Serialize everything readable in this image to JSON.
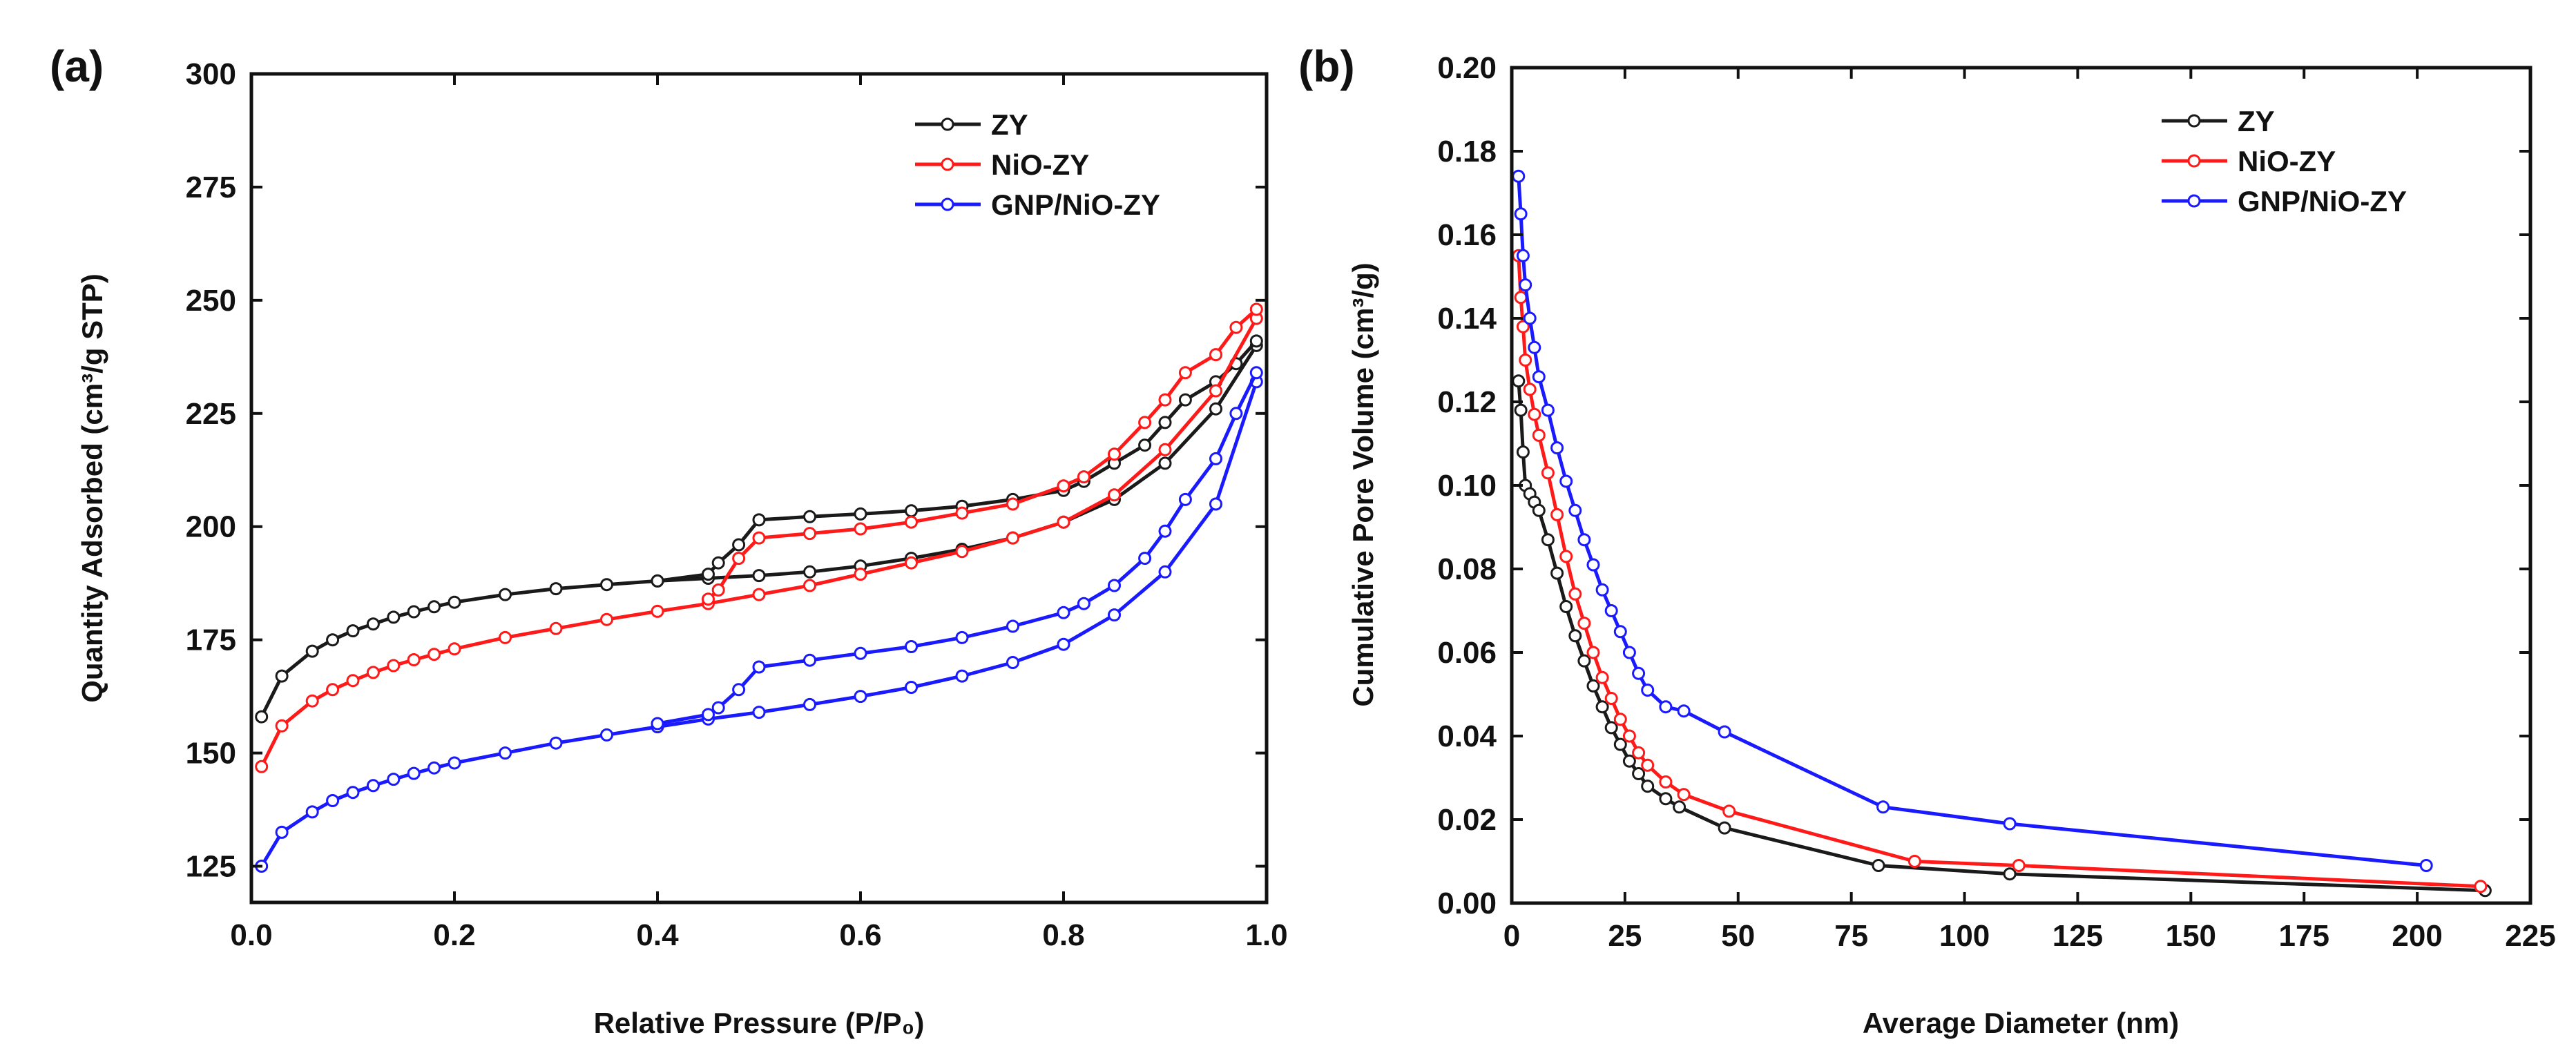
{
  "chart_data": [
    {
      "type": "line",
      "panel_label": "(a)",
      "title": "",
      "xlabel": "Relative Pressure (P/P₀)",
      "ylabel": "Quantity Adsorbed (cm³/g STP)",
      "xlim": [
        0.0,
        1.0
      ],
      "ylim": [
        117,
        300
      ],
      "xticks": [
        0.0,
        0.2,
        0.4,
        0.6,
        0.8,
        1.0
      ],
      "xtick_labels": [
        "0.0",
        "0.2",
        "0.4",
        "0.6",
        "0.8",
        "1.0"
      ],
      "yticks": [
        125,
        150,
        175,
        200,
        225,
        250,
        275,
        300
      ],
      "ytick_labels": [
        "125",
        "150",
        "175",
        "200",
        "225",
        "250",
        "275",
        "300"
      ],
      "grid": false,
      "legend_position": "top-right",
      "series": [
        {
          "name": "ZY",
          "color": "#1a1a1a",
          "adsorption": [
            [
              0.01,
              158
            ],
            [
              0.03,
              167
            ],
            [
              0.06,
              172.5
            ],
            [
              0.08,
              175
            ],
            [
              0.1,
              177
            ],
            [
              0.12,
              178.5
            ],
            [
              0.14,
              180
            ],
            [
              0.16,
              181.2
            ],
            [
              0.18,
              182.3
            ],
            [
              0.2,
              183.3
            ],
            [
              0.25,
              185
            ],
            [
              0.3,
              186.3
            ],
            [
              0.35,
              187.2
            ],
            [
              0.4,
              188
            ],
            [
              0.45,
              188.6
            ],
            [
              0.5,
              189.2
            ],
            [
              0.55,
              190
            ],
            [
              0.6,
              191.3
            ],
            [
              0.65,
              193
            ],
            [
              0.7,
              195
            ],
            [
              0.75,
              197.5
            ],
            [
              0.8,
              201
            ],
            [
              0.85,
              206
            ],
            [
              0.9,
              214
            ],
            [
              0.95,
              226
            ],
            [
              0.99,
              240
            ]
          ],
          "desorption": [
            [
              0.99,
              241
            ],
            [
              0.97,
              236
            ],
            [
              0.95,
              232
            ],
            [
              0.92,
              228
            ],
            [
              0.9,
              223
            ],
            [
              0.88,
              218
            ],
            [
              0.85,
              214
            ],
            [
              0.82,
              210
            ],
            [
              0.8,
              208
            ],
            [
              0.75,
              206
            ],
            [
              0.7,
              204.5
            ],
            [
              0.65,
              203.5
            ],
            [
              0.6,
              202.8
            ],
            [
              0.55,
              202.2
            ],
            [
              0.5,
              201.5
            ],
            [
              0.48,
              196
            ],
            [
              0.46,
              192
            ],
            [
              0.45,
              189.5
            ],
            [
              0.4,
              188
            ]
          ]
        },
        {
          "name": "NiO-ZY",
          "color": "#ff1a1a",
          "adsorption": [
            [
              0.01,
              147
            ],
            [
              0.03,
              156
            ],
            [
              0.06,
              161.5
            ],
            [
              0.08,
              164
            ],
            [
              0.1,
              166
            ],
            [
              0.12,
              167.8
            ],
            [
              0.14,
              169.3
            ],
            [
              0.16,
              170.6
            ],
            [
              0.18,
              171.8
            ],
            [
              0.2,
              173
            ],
            [
              0.25,
              175.5
            ],
            [
              0.3,
              177.5
            ],
            [
              0.35,
              179.5
            ],
            [
              0.4,
              181.3
            ],
            [
              0.45,
              183
            ],
            [
              0.5,
              185
            ],
            [
              0.55,
              187
            ],
            [
              0.6,
              189.5
            ],
            [
              0.65,
              192
            ],
            [
              0.7,
              194.5
            ],
            [
              0.75,
              197.5
            ],
            [
              0.8,
              201
            ],
            [
              0.85,
              207
            ],
            [
              0.9,
              217
            ],
            [
              0.95,
              230
            ],
            [
              0.99,
              246
            ]
          ],
          "desorption": [
            [
              0.99,
              248
            ],
            [
              0.97,
              244
            ],
            [
              0.95,
              238
            ],
            [
              0.92,
              234
            ],
            [
              0.9,
              228
            ],
            [
              0.88,
              223
            ],
            [
              0.85,
              216
            ],
            [
              0.82,
              211
            ],
            [
              0.8,
              209
            ],
            [
              0.75,
              205
            ],
            [
              0.7,
              203
            ],
            [
              0.65,
              201
            ],
            [
              0.6,
              199.5
            ],
            [
              0.55,
              198.5
            ],
            [
              0.5,
              197.5
            ],
            [
              0.48,
              193
            ],
            [
              0.46,
              186
            ],
            [
              0.45,
              184
            ]
          ]
        },
        {
          "name": "GNP/NiO-ZY",
          "color": "#1a1aff",
          "adsorption": [
            [
              0.01,
              125
            ],
            [
              0.03,
              132.5
            ],
            [
              0.06,
              137
            ],
            [
              0.08,
              139.5
            ],
            [
              0.1,
              141.3
            ],
            [
              0.12,
              142.8
            ],
            [
              0.14,
              144.2
            ],
            [
              0.16,
              145.5
            ],
            [
              0.18,
              146.7
            ],
            [
              0.2,
              147.8
            ],
            [
              0.25,
              150
            ],
            [
              0.3,
              152.2
            ],
            [
              0.35,
              154
            ],
            [
              0.4,
              155.8
            ],
            [
              0.45,
              157.5
            ],
            [
              0.5,
              159
            ],
            [
              0.55,
              160.7
            ],
            [
              0.6,
              162.5
            ],
            [
              0.65,
              164.5
            ],
            [
              0.7,
              167
            ],
            [
              0.75,
              170
            ],
            [
              0.8,
              174
            ],
            [
              0.85,
              180.5
            ],
            [
              0.9,
              190
            ],
            [
              0.95,
              205
            ],
            [
              0.99,
              232
            ]
          ],
          "desorption": [
            [
              0.99,
              234
            ],
            [
              0.97,
              225
            ],
            [
              0.95,
              215
            ],
            [
              0.92,
              206
            ],
            [
              0.9,
              199
            ],
            [
              0.88,
              193
            ],
            [
              0.85,
              187
            ],
            [
              0.82,
              183
            ],
            [
              0.8,
              181
            ],
            [
              0.75,
              178
            ],
            [
              0.7,
              175.5
            ],
            [
              0.65,
              173.5
            ],
            [
              0.6,
              172
            ],
            [
              0.55,
              170.5
            ],
            [
              0.5,
              169
            ],
            [
              0.48,
              164
            ],
            [
              0.46,
              160
            ],
            [
              0.45,
              158.5
            ],
            [
              0.4,
              156.5
            ]
          ]
        }
      ]
    },
    {
      "type": "line",
      "panel_label": "(b)",
      "title": "",
      "xlabel": "Average Diameter (nm)",
      "ylabel": "Cumulative Pore Volume (cm³/g)",
      "xlim": [
        0,
        225
      ],
      "ylim": [
        0.0,
        0.2
      ],
      "xticks": [
        0,
        25,
        50,
        75,
        100,
        125,
        150,
        175,
        200,
        225
      ],
      "xtick_labels": [
        "0",
        "25",
        "50",
        "75",
        "100",
        "125",
        "150",
        "175",
        "200",
        "225"
      ],
      "yticks": [
        0.0,
        0.02,
        0.04,
        0.06,
        0.08,
        0.1,
        0.12,
        0.14,
        0.16,
        0.18,
        0.2
      ],
      "ytick_labels": [
        "0.00",
        "0.02",
        "0.04",
        "0.06",
        "0.08",
        "0.10",
        "0.12",
        "0.14",
        "0.16",
        "0.18",
        "0.20"
      ],
      "grid": false,
      "legend_position": "top-right",
      "series": [
        {
          "name": "ZY",
          "color": "#1a1a1a",
          "points": [
            [
              1.5,
              0.125
            ],
            [
              2,
              0.118
            ],
            [
              2.5,
              0.108
            ],
            [
              3,
              0.1
            ],
            [
              4,
              0.098
            ],
            [
              5,
              0.096
            ],
            [
              6,
              0.094
            ],
            [
              8,
              0.087
            ],
            [
              10,
              0.079
            ],
            [
              12,
              0.071
            ],
            [
              14,
              0.064
            ],
            [
              16,
              0.058
            ],
            [
              18,
              0.052
            ],
            [
              20,
              0.047
            ],
            [
              22,
              0.042
            ],
            [
              24,
              0.038
            ],
            [
              26,
              0.034
            ],
            [
              28,
              0.031
            ],
            [
              30,
              0.028
            ],
            [
              34,
              0.025
            ],
            [
              37,
              0.023
            ],
            [
              47,
              0.018
            ],
            [
              81,
              0.009
            ],
            [
              110,
              0.007
            ],
            [
              215,
              0.003
            ]
          ]
        },
        {
          "name": "NiO-ZY",
          "color": "#ff1a1a",
          "points": [
            [
              1.5,
              0.155
            ],
            [
              2,
              0.145
            ],
            [
              2.5,
              0.138
            ],
            [
              3,
              0.13
            ],
            [
              4,
              0.123
            ],
            [
              5,
              0.117
            ],
            [
              6,
              0.112
            ],
            [
              8,
              0.103
            ],
            [
              10,
              0.093
            ],
            [
              12,
              0.083
            ],
            [
              14,
              0.074
            ],
            [
              16,
              0.067
            ],
            [
              18,
              0.06
            ],
            [
              20,
              0.054
            ],
            [
              22,
              0.049
            ],
            [
              24,
              0.044
            ],
            [
              26,
              0.04
            ],
            [
              28,
              0.036
            ],
            [
              30,
              0.033
            ],
            [
              34,
              0.029
            ],
            [
              38,
              0.026
            ],
            [
              48,
              0.022
            ],
            [
              89,
              0.01
            ],
            [
              112,
              0.009
            ],
            [
              214,
              0.004
            ]
          ]
        },
        {
          "name": "GNP/NiO-ZY",
          "color": "#1a1aff",
          "points": [
            [
              1.5,
              0.174
            ],
            [
              2,
              0.165
            ],
            [
              2.5,
              0.155
            ],
            [
              3,
              0.148
            ],
            [
              4,
              0.14
            ],
            [
              5,
              0.133
            ],
            [
              6,
              0.126
            ],
            [
              8,
              0.118
            ],
            [
              10,
              0.109
            ],
            [
              12,
              0.101
            ],
            [
              14,
              0.094
            ],
            [
              16,
              0.087
            ],
            [
              18,
              0.081
            ],
            [
              20,
              0.075
            ],
            [
              22,
              0.07
            ],
            [
              24,
              0.065
            ],
            [
              26,
              0.06
            ],
            [
              28,
              0.055
            ],
            [
              30,
              0.051
            ],
            [
              34,
              0.047
            ],
            [
              38,
              0.046
            ],
            [
              47,
              0.041
            ],
            [
              82,
              0.023
            ],
            [
              110,
              0.019
            ],
            [
              202,
              0.009
            ]
          ]
        }
      ]
    }
  ]
}
